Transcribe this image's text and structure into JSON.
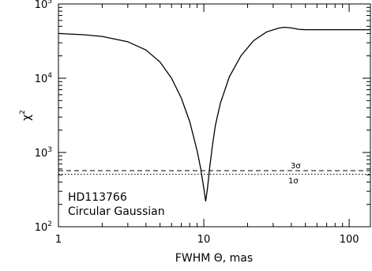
{
  "chart_data": {
    "type": "line",
    "xlabel": "FWHM Θ, mas",
    "ylabel_base": "χ",
    "ylabel_exp": "2",
    "x_scale": "log",
    "y_scale": "log",
    "xlim": [
      1,
      140
    ],
    "ylim": [
      100,
      100000
    ],
    "x_ticks": [
      {
        "value": 1,
        "label": "1"
      },
      {
        "value": 10,
        "label": "10"
      },
      {
        "value": 100,
        "label": "100"
      }
    ],
    "y_ticks": [
      {
        "value": 100,
        "base": "10",
        "exp": "2"
      },
      {
        "value": 1000,
        "base": "10",
        "exp": "3"
      },
      {
        "value": 10000,
        "base": "10",
        "exp": "4"
      },
      {
        "value": 100000,
        "base": "10",
        "exp": "5"
      }
    ],
    "series": [
      {
        "style": "solid",
        "x": [
          1,
          1.5,
          2,
          3,
          4,
          5,
          6,
          7,
          8,
          9,
          9.5,
          10,
          10.3,
          10.6,
          11,
          11.5,
          12,
          13,
          15,
          18,
          22,
          27,
          33,
          36,
          40,
          45,
          50,
          60,
          80,
          100,
          140
        ],
        "y": [
          40000,
          38500,
          36500,
          31000,
          24000,
          16500,
          10000,
          5400,
          2600,
          1050,
          620,
          330,
          220,
          330,
          650,
          1300,
          2300,
          4600,
          10500,
          20000,
          32000,
          42000,
          47500,
          48500,
          47500,
          45500,
          45000,
          45000,
          45000,
          45000,
          45000
        ]
      }
    ],
    "reference_lines": [
      {
        "y": 570,
        "style": "dashed",
        "label": "3σ"
      },
      {
        "y": 510,
        "style": "dotted",
        "label": "1σ"
      }
    ],
    "annotation_lines": [
      "HD113766",
      "Circular Gaussian"
    ]
  }
}
